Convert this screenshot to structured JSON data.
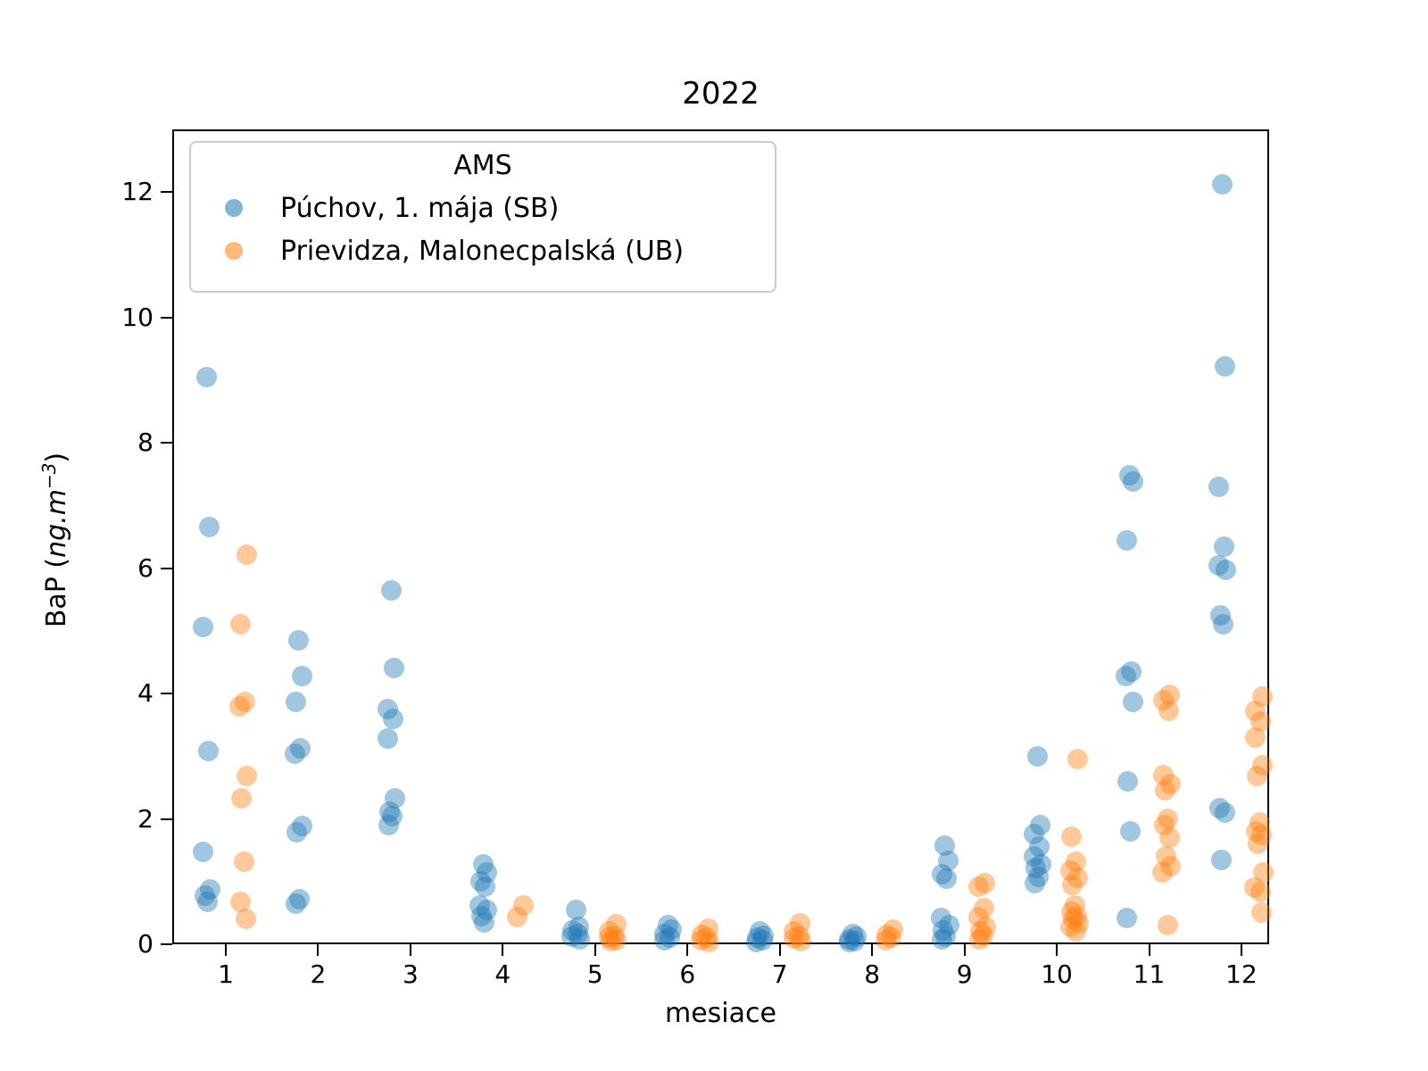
{
  "title": "2022",
  "chart_data": {
    "type": "scatter",
    "title": "2022",
    "xlabel": "mesiace",
    "ylabel": "BaP  (ng.m−3)",
    "ylabel_parts": {
      "prefix": "BaP  (",
      "italic": "ng.m",
      "sup": "−3",
      "suffix": ")"
    },
    "legend_title": "AMS",
    "legend_position": "upper left",
    "grid": false,
    "xlim": [
      0.42,
      12.3
    ],
    "ylim": [
      0,
      13
    ],
    "x_tick_labels": [
      "1",
      "2",
      "3",
      "4",
      "5",
      "6",
      "7",
      "8",
      "9",
      "10",
      "11",
      "12"
    ],
    "y_tick_labels": [
      "0",
      "2",
      "4",
      "6",
      "8",
      "10",
      "12"
    ],
    "x_ticks": [
      1,
      2,
      3,
      4,
      5,
      6,
      7,
      8,
      9,
      10,
      11,
      12
    ],
    "y_ticks": [
      0,
      2,
      4,
      6,
      8,
      10,
      12
    ],
    "marker_alpha": 0.42,
    "marker_diameter_px": 23,
    "series": [
      {
        "name": "Púchov, 1. mája (SB)",
        "color": "#1f77b4",
        "x_offset": -0.21,
        "months": {
          "1": [
            9.05,
            6.65,
            5.06,
            3.08,
            1.48,
            0.88,
            0.78,
            0.68
          ],
          "2": [
            4.85,
            4.28,
            3.86,
            3.12,
            3.04,
            1.88,
            1.78,
            0.72,
            0.65
          ],
          "3": [
            5.65,
            4.4,
            3.75,
            3.6,
            3.28,
            2.33,
            2.12,
            2.05,
            1.9
          ],
          "4": [
            1.28,
            1.14,
            1.01,
            0.92,
            0.62,
            0.55,
            0.45,
            0.35
          ],
          "5": [
            0.55,
            0.28,
            0.22,
            0.16,
            0.12,
            0.08
          ],
          "6": [
            0.3,
            0.23,
            0.16,
            0.1,
            0.06
          ],
          "7": [
            0.2,
            0.14,
            0.1,
            0.06,
            0.04
          ],
          "8": [
            0.17,
            0.12,
            0.08,
            0.05,
            0.04
          ],
          "9": [
            1.58,
            1.33,
            1.12,
            1.05,
            0.42,
            0.3,
            0.22,
            0.12,
            0.08
          ],
          "10": [
            3.0,
            1.9,
            1.76,
            1.56,
            1.4,
            1.28,
            1.22,
            1.07,
            0.97
          ],
          "11": [
            7.48,
            7.38,
            6.45,
            4.35,
            4.28,
            3.86,
            2.6,
            1.8,
            0.42
          ],
          "12": [
            12.12,
            9.22,
            7.3,
            6.35,
            6.05,
            5.97,
            5.25,
            5.1,
            2.17,
            2.1,
            1.35
          ]
        }
      },
      {
        "name": "Prievidza, Malonecpalská (UB)",
        "color": "#ff7f0e",
        "x_offset": 0.19,
        "months": {
          "1": [
            6.22,
            5.1,
            3.86,
            3.8,
            2.68,
            2.33,
            1.31,
            0.67,
            0.4
          ],
          "2": [],
          "3": [],
          "4": [
            0.62,
            0.43
          ],
          "5": [
            0.32,
            0.2,
            0.14,
            0.1,
            0.07,
            0.05
          ],
          "6": [
            0.25,
            0.15,
            0.1,
            0.06,
            0.04
          ],
          "7": [
            0.33,
            0.21,
            0.14,
            0.09,
            0.05
          ],
          "8": [
            0.24,
            0.15,
            0.1,
            0.06
          ],
          "9": [
            0.98,
            0.92,
            0.58,
            0.44,
            0.28,
            0.2,
            0.14,
            0.08
          ],
          "10": [
            2.96,
            1.72,
            1.32,
            1.18,
            1.06,
            0.94,
            0.62,
            0.52,
            0.45,
            0.4,
            0.33,
            0.28,
            0.2
          ],
          "11": [
            3.98,
            3.9,
            3.72,
            2.7,
            2.55,
            2.45,
            2.0,
            1.9,
            1.7,
            1.4,
            1.25,
            1.14,
            0.3
          ],
          "12": [
            3.95,
            3.72,
            3.55,
            3.3,
            2.86,
            2.68,
            1.94,
            1.8,
            1.75,
            1.6,
            1.14,
            0.9,
            0.84,
            0.51
          ]
        }
      }
    ]
  }
}
